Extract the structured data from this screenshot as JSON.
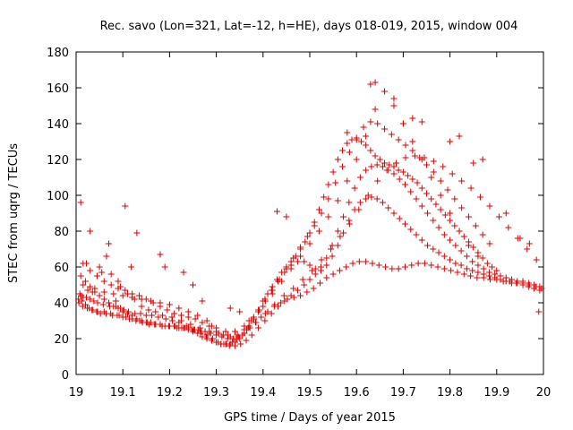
{
  "chart_data": {
    "type": "scatter",
    "title": "Rec. savo (Lon=321, Lat=-12, h=HE), days 018-019, 2015, window 004",
    "xlabel": "GPS time / Days of year 2015",
    "ylabel": "STEC from uqrg / TECUs",
    "xlim": [
      19.0,
      20.0
    ],
    "ylim": [
      0,
      180
    ],
    "x_ticks": [
      "19",
      "19.1",
      "19.2",
      "19.3",
      "19.4",
      "19.5",
      "19.6",
      "19.7",
      "19.8",
      "19.9",
      "20"
    ],
    "y_ticks": [
      "0",
      "20",
      "40",
      "60",
      "80",
      "100",
      "120",
      "140",
      "160",
      "180"
    ],
    "grid": false,
    "marker": "+",
    "colors": {
      "series": "#dd0000",
      "axes": "#000000"
    },
    "series": [
      {
        "x": [
          19.008,
          19.011,
          19.015,
          19.022,
          19.03,
          19.038,
          19.046,
          19.058,
          19.072,
          19.085,
          19.095,
          19.102,
          19.112,
          19.126,
          19.138,
          19.15,
          19.162,
          19.176,
          19.192,
          19.206,
          19.22,
          19.236,
          19.252,
          19.266,
          19.278,
          19.29,
          19.3,
          19.31,
          19.322,
          19.334,
          19.344,
          19.356,
          19.368,
          19.38,
          19.392,
          19.404,
          19.418,
          19.432,
          19.446,
          19.46,
          19.474,
          19.488,
          19.5,
          19.512,
          19.524,
          19.536,
          19.548,
          19.56,
          19.572,
          19.584,
          19.596,
          19.608,
          19.62,
          19.632,
          19.644,
          19.656,
          19.668,
          19.68,
          19.692,
          19.704,
          19.716,
          19.728,
          19.74,
          19.752,
          19.764,
          19.776,
          19.788,
          19.8,
          19.812,
          19.824,
          19.836,
          19.848,
          19.86,
          19.872,
          19.884,
          19.896,
          19.908,
          19.92,
          19.932,
          19.944,
          19.956,
          19.968,
          19.98,
          19.992
        ],
        "y": [
          45,
          44,
          43,
          43,
          42,
          41,
          40,
          39,
          38,
          38,
          37,
          36,
          35,
          34,
          34,
          33,
          33,
          32,
          31,
          30,
          29,
          27,
          25,
          23,
          21,
          19,
          18,
          17,
          17,
          18,
          20,
          22,
          26,
          31,
          36,
          42,
          47,
          52,
          57,
          61,
          63,
          63,
          61,
          59,
          58,
          61,
          66,
          72,
          79,
          86,
          92,
          96,
          98,
          99,
          98,
          96,
          93,
          90,
          87,
          84,
          81,
          78,
          75,
          72,
          70,
          68,
          66,
          64,
          62,
          61,
          59,
          58,
          57,
          56,
          55,
          54,
          53,
          52,
          51,
          51,
          50,
          49,
          48,
          47
        ]
      },
      {
        "x": [
          19.006,
          19.014,
          19.024,
          19.034,
          19.046,
          19.06,
          19.074,
          19.088,
          19.1,
          19.114,
          19.128,
          19.142,
          19.156,
          19.17,
          19.184,
          19.198,
          19.212,
          19.226,
          19.24,
          19.254,
          19.268,
          19.28,
          19.292,
          19.304,
          19.316,
          19.328,
          19.34,
          19.352,
          19.364,
          19.376,
          19.39,
          19.404,
          19.418,
          19.432,
          19.446,
          19.46,
          19.474,
          19.488,
          19.5,
          19.512,
          19.524,
          19.536,
          19.548,
          19.56,
          19.572,
          19.584,
          19.596,
          19.608,
          19.62,
          19.632,
          19.644,
          19.656,
          19.668,
          19.68,
          19.692,
          19.704,
          19.716,
          19.728,
          19.74,
          19.752,
          19.764,
          19.776,
          19.788,
          19.8,
          19.812,
          19.824,
          19.836,
          19.848,
          19.86,
          19.872,
          19.884,
          19.896,
          19.908,
          19.92,
          19.932,
          19.944,
          19.956,
          19.968,
          19.98,
          19.992
        ],
        "y": [
          40,
          38,
          37,
          36,
          35,
          35,
          34,
          33,
          32,
          31,
          30,
          29,
          28,
          28,
          27,
          27,
          27,
          26,
          26,
          25,
          24,
          22,
          20,
          18,
          17,
          16,
          16,
          17,
          19,
          22,
          26,
          30,
          34,
          38,
          41,
          44,
          47,
          50,
          53,
          56,
          60,
          65,
          72,
          80,
          88,
          96,
          104,
          110,
          114,
          116,
          117,
          116,
          114,
          112,
          109,
          106,
          102,
          98,
          94,
          90,
          86,
          82,
          78,
          75,
          72,
          69,
          66,
          63,
          61,
          59,
          57,
          56,
          55,
          54,
          53,
          52,
          52,
          51,
          50,
          49
        ]
      },
      {
        "x": [
          19.01,
          19.02,
          19.03,
          19.04,
          19.05,
          19.06,
          19.07,
          19.08,
          19.09,
          19.1,
          19.11,
          19.12,
          19.13,
          19.14,
          19.15,
          19.16,
          19.17,
          19.18,
          19.19,
          19.2,
          19.21,
          19.22,
          19.23,
          19.24,
          19.25,
          19.26,
          19.27,
          19.28,
          19.29,
          19.3,
          19.31,
          19.32,
          19.33,
          19.34,
          19.35,
          19.36,
          19.37,
          19.38,
          19.39,
          19.4,
          19.41,
          19.42,
          19.43,
          19.44,
          19.45,
          19.46,
          19.47,
          19.48,
          19.49,
          19.5,
          19.51,
          19.52,
          19.53,
          19.54,
          19.55,
          19.56,
          19.57,
          19.58,
          19.59,
          19.6,
          19.61,
          19.62,
          19.63,
          19.64,
          19.65,
          19.66,
          19.67,
          19.68,
          19.69,
          19.7,
          19.71,
          19.72,
          19.73,
          19.74,
          19.75,
          19.76,
          19.77,
          19.78,
          19.79,
          19.8,
          19.81,
          19.82,
          19.83,
          19.84,
          19.85,
          19.86,
          19.87,
          19.88,
          19.89,
          19.9
        ],
        "y": [
          55,
          52,
          49,
          46,
          44,
          42,
          40,
          38,
          37,
          35,
          34,
          33,
          31,
          30,
          29,
          29,
          28,
          28,
          27,
          27,
          27,
          26,
          26,
          25,
          24,
          23,
          21,
          20,
          19,
          18,
          17,
          17,
          17,
          18,
          20,
          23,
          27,
          31,
          36,
          41,
          45,
          49,
          53,
          57,
          60,
          63,
          66,
          70,
          74,
          79,
          85,
          92,
          99,
          106,
          113,
          120,
          125,
          129,
          131,
          131,
          130,
          128,
          125,
          122,
          120,
          118,
          117,
          116,
          114,
          113,
          111,
          109,
          107,
          104,
          101,
          98,
          95,
          92,
          89,
          86,
          83,
          80,
          77,
          74,
          71,
          68,
          65,
          62,
          60,
          58
        ]
      },
      {
        "x": [
          19.015,
          19.03,
          19.045,
          19.06,
          19.075,
          19.09,
          19.105,
          19.12,
          19.135,
          19.15,
          19.165,
          19.18,
          19.195,
          19.21,
          19.225,
          19.24,
          19.255,
          19.27,
          19.285,
          19.3,
          19.315,
          19.33,
          19.345,
          19.36,
          19.375,
          19.39,
          19.405,
          19.42,
          19.435,
          19.45,
          19.465,
          19.48,
          19.495,
          19.51,
          19.525,
          19.54,
          19.555,
          19.57,
          19.585,
          19.6,
          19.615,
          19.63,
          19.645,
          19.66,
          19.675,
          19.69,
          19.705,
          19.72,
          19.735,
          19.75,
          19.765,
          19.78,
          19.795,
          19.81,
          19.825,
          19.84,
          19.855,
          19.87,
          19.885
        ],
        "y": [
          62,
          58,
          55,
          52,
          50,
          48,
          47,
          45,
          44,
          42,
          40,
          38,
          36,
          34,
          33,
          32,
          31,
          29,
          27,
          24,
          22,
          21,
          22,
          25,
          30,
          35,
          41,
          47,
          53,
          59,
          65,
          71,
          77,
          83,
          90,
          98,
          107,
          116,
          124,
          132,
          138,
          141,
          140,
          137,
          134,
          131,
          128,
          125,
          121,
          117,
          113,
          108,
          103,
          98,
          93,
          88,
          83,
          78,
          73
        ]
      },
      {
        "x": [
          19.005,
          19.012,
          19.02,
          19.028,
          19.036,
          19.044,
          19.052,
          19.064,
          19.078,
          19.092,
          19.106,
          19.12,
          19.136,
          19.152,
          19.168,
          19.184,
          19.2,
          19.216,
          19.232,
          19.248,
          19.262,
          19.276,
          19.288,
          19.3,
          19.312,
          19.324,
          19.336,
          19.348,
          19.36,
          19.372,
          19.384,
          19.396,
          19.41,
          19.424,
          19.438,
          19.452,
          19.466,
          19.48,
          19.494,
          19.508,
          19.522,
          19.536,
          19.55,
          19.564,
          19.578,
          19.592,
          19.606,
          19.62,
          19.634,
          19.648,
          19.662,
          19.676,
          19.69,
          19.704,
          19.718,
          19.732,
          19.746,
          19.76,
          19.774,
          19.788,
          19.802,
          19.816,
          19.83,
          19.844,
          19.858,
          19.872,
          19.886,
          19.9,
          19.914,
          19.928,
          19.942,
          19.956,
          19.97,
          19.984,
          19.996
        ],
        "y": [
          42,
          41,
          39,
          37,
          36,
          35,
          34,
          34,
          33,
          33,
          32,
          31,
          30,
          29,
          28,
          27,
          27,
          26,
          26,
          25,
          25,
          24,
          23,
          22,
          21,
          20,
          20,
          21,
          23,
          26,
          29,
          32,
          35,
          38,
          40,
          42,
          43,
          44,
          46,
          48,
          51,
          54,
          56,
          58,
          60,
          62,
          63,
          63,
          62,
          61,
          60,
          59,
          59,
          60,
          61,
          62,
          62,
          61,
          60,
          59,
          58,
          57,
          56,
          55,
          54,
          54,
          53,
          53,
          52,
          52,
          51,
          51,
          50,
          49,
          48
        ]
      },
      {
        "x": [
          19.04,
          19.06,
          19.08,
          19.1,
          19.12,
          19.14,
          19.16,
          19.18,
          19.2,
          19.22,
          19.24,
          19.26,
          19.28,
          19.3,
          19.32,
          19.34,
          19.36,
          19.38,
          19.4,
          19.42,
          19.44,
          19.46,
          19.48,
          19.5,
          19.52,
          19.54,
          19.56,
          19.58,
          19.6,
          19.62,
          19.64,
          19.66,
          19.68,
          19.7,
          19.72,
          19.74,
          19.76,
          19.78,
          19.8,
          19.82,
          19.84,
          19.86
        ],
        "y": [
          48,
          46,
          45,
          44,
          43,
          42,
          41,
          40,
          39,
          37,
          35,
          33,
          30,
          26,
          24,
          24,
          27,
          32,
          38,
          45,
          52,
          59,
          66,
          73,
          80,
          88,
          97,
          108,
          120,
          133,
          148,
          158,
          150,
          140,
          130,
          120,
          110,
          100,
          90,
          80,
          72,
          66
        ]
      },
      {
        "x": [
          19.01,
          19.022,
          19.03,
          19.05,
          19.07,
          19.09,
          19.105,
          19.118,
          19.13,
          19.18,
          19.19,
          19.23,
          19.25,
          19.27,
          19.29,
          19.33,
          19.35,
          19.37,
          19.43,
          19.45,
          19.58,
          19.63,
          19.64,
          19.66,
          19.68,
          19.7,
          19.72,
          19.74,
          19.8,
          19.82,
          19.85,
          19.87,
          19.92,
          19.95,
          19.97,
          19.99
        ],
        "y": [
          96,
          62,
          80,
          60,
          73,
          52,
          94,
          60,
          79,
          67,
          60,
          57,
          50,
          41,
          27,
          37,
          35,
          30,
          91,
          88,
          135,
          162,
          163,
          158,
          154,
          140,
          143,
          141,
          130,
          133,
          118,
          120,
          90,
          76,
          73,
          35
        ]
      },
      {
        "x": [
          19.015,
          19.025,
          19.035,
          19.055,
          19.065,
          19.075,
          19.085,
          19.095,
          19.11,
          19.125,
          19.14,
          19.155,
          19.17,
          19.185,
          19.205,
          19.225,
          19.245,
          19.265,
          19.285,
          19.305,
          19.325,
          19.345,
          19.365,
          19.385,
          19.405,
          19.425,
          19.445,
          19.465,
          19.485,
          19.505,
          19.525,
          19.545,
          19.565,
          19.585,
          19.605,
          19.625,
          19.645,
          19.665,
          19.685,
          19.705,
          19.725,
          19.745,
          19.765,
          19.785,
          19.805,
          19.825,
          19.845,
          19.865,
          19.885,
          19.905,
          19.925,
          19.945,
          19.965,
          19.985
        ],
        "y": [
          50,
          47,
          46,
          57,
          66,
          56,
          41,
          49,
          45,
          42,
          38,
          36,
          35,
          33,
          32,
          30,
          28,
          26,
          24,
          23,
          22,
          21,
          25,
          29,
          34,
          39,
          44,
          48,
          53,
          58,
          64,
          70,
          77,
          84,
          92,
          100,
          108,
          114,
          118,
          121,
          122,
          121,
          119,
          116,
          112,
          108,
          104,
          99,
          94,
          88,
          82,
          76,
          70,
          64
        ]
      }
    ]
  }
}
